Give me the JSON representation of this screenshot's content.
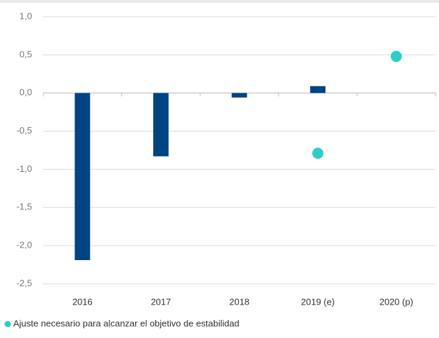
{
  "chart_data": {
    "type": "bar",
    "categories": [
      "2016",
      "2017",
      "2018",
      "2019 (e)",
      "2020 (p)"
    ],
    "series": [
      {
        "type": "bar",
        "color": "#004481",
        "values": [
          -2.19,
          -0.83,
          -0.06,
          0.09,
          null
        ]
      },
      {
        "type": "scatter",
        "name": "Ajuste necesario para alcanzar el objetivo de estabilidad",
        "color": "#2dcccd",
        "values": [
          null,
          null,
          null,
          -0.79,
          0.48
        ]
      }
    ],
    "ylim": [
      -2.5,
      1.0
    ],
    "yticks": [
      {
        "value": -2.5,
        "label": "-2,5"
      },
      {
        "value": -2.0,
        "label": "-2,0"
      },
      {
        "value": -1.5,
        "label": "-1,5"
      },
      {
        "value": -1.0,
        "label": "-1,0"
      },
      {
        "value": -0.5,
        "label": "-0,5"
      },
      {
        "value": 0.0,
        "label": "0,0"
      },
      {
        "value": 0.5,
        "label": "0,5"
      },
      {
        "value": 1.0,
        "label": "1,0"
      }
    ],
    "grid": true
  }
}
